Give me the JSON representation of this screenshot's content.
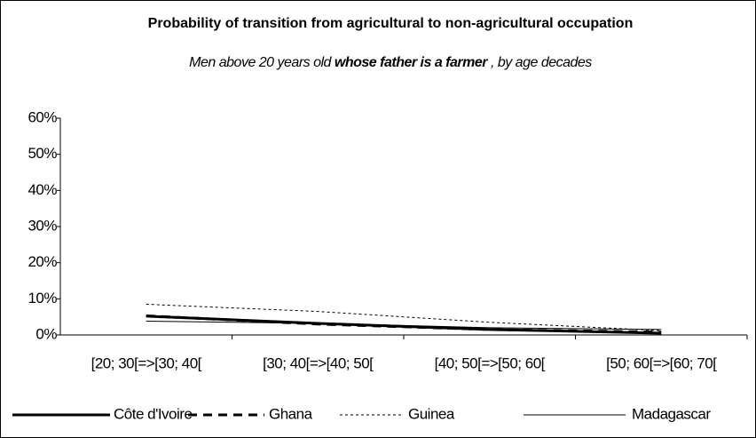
{
  "chart_data": {
    "type": "line",
    "title": "Probability of transition from agricultural to non-agricultural occupation",
    "subtitle": [
      "Men above 20 years old",
      "whose father is a farmer",
      ", by age decades"
    ],
    "categories": [
      "[20; 30[=>[30; 40[",
      "[30; 40[=>[40; 50[",
      "[40; 50[=>[50; 60[",
      "[50; 60[=>[60; 70["
    ],
    "series": [
      {
        "name": "Côte d'Ivoire",
        "color": "#000000",
        "style": "solid",
        "width": 3,
        "values": [
          5.2,
          3.2,
          1.5,
          0.5
        ]
      },
      {
        "name": "Ghana",
        "color": "#000000",
        "style": "dashed",
        "width": 3,
        "values": [
          5.3,
          3.0,
          1.5,
          0.8
        ]
      },
      {
        "name": "Guinea",
        "color": "#000000",
        "style": "dotted",
        "width": 1,
        "values": [
          8.5,
          6.5,
          3.5,
          1.2
        ]
      },
      {
        "name": "Madagascar",
        "color": "#000000",
        "style": "solid",
        "width": 1,
        "values": [
          3.8,
          3.2,
          2.0,
          1.5
        ]
      }
    ],
    "ylim": [
      0,
      60
    ],
    "yticks": [
      {
        "value": 0,
        "label": "0%"
      },
      {
        "value": 10,
        "label": "10%"
      },
      {
        "value": 20,
        "label": "20%"
      },
      {
        "value": 30,
        "label": "30%"
      },
      {
        "value": 40,
        "label": "40%"
      },
      {
        "value": 50,
        "label": "50%"
      },
      {
        "value": 60,
        "label": "60%"
      }
    ],
    "legend": "bottom"
  }
}
